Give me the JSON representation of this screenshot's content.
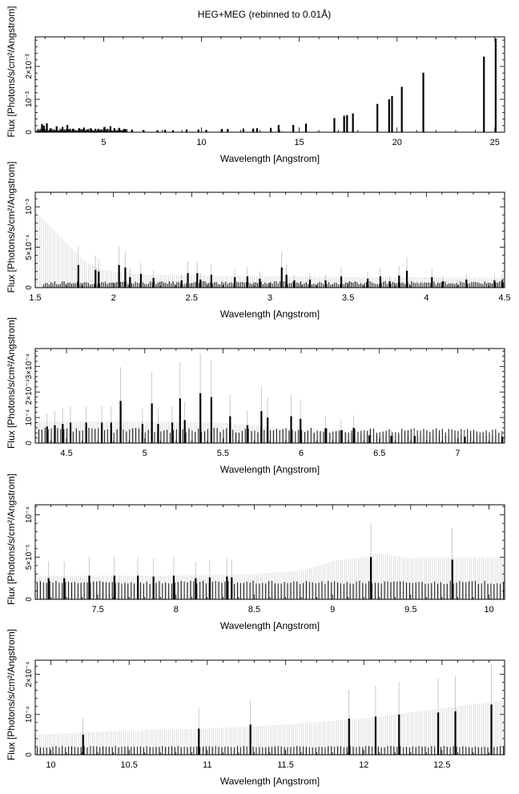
{
  "title": "HEG+MEG (rebinned to 0.01Å)",
  "chart_data": [
    {
      "type": "bar",
      "title": "HEG+MEG (rebinned to 0.01Å)",
      "xlabel": "Wavelength [Angstrom]",
      "ylabel": "Flux [Photons/s/cm²/Angstrom]",
      "xlim": [
        1.5,
        25.5
      ],
      "ylim": [
        0,
        0.0029
      ],
      "xticks": [
        5,
        10,
        15,
        20,
        25
      ],
      "yticks": [
        {
          "v": 0,
          "label": "0"
        },
        {
          "v": 0.001,
          "label": "10⁻³"
        },
        {
          "v": 0.002,
          "label": "2×10⁻³"
        }
      ],
      "grid": false,
      "bars": [
        [
          1.8,
          0.00025
        ],
        [
          1.9,
          0.0002
        ],
        [
          2.05,
          0.00027
        ],
        [
          2.25,
          0.00012
        ],
        [
          2.55,
          0.00018
        ],
        [
          2.85,
          0.00016
        ],
        [
          3.1,
          0.00022
        ],
        [
          3.4,
          0.0001
        ],
        [
          3.7,
          0.00012
        ],
        [
          3.95,
          0.00014
        ],
        [
          4.3,
          0.00012
        ],
        [
          4.7,
          0.0001
        ],
        [
          5.0,
          0.00016
        ],
        [
          5.3,
          0.00018
        ],
        [
          5.5,
          0.00012
        ],
        [
          5.75,
          0.00013
        ],
        [
          6.05,
          0.0001
        ],
        [
          6.4,
          8e-05
        ],
        [
          7.0,
          6e-05
        ],
        [
          7.7,
          6e-05
        ],
        [
          8.1,
          7e-05
        ],
        [
          8.5,
          6e-05
        ],
        [
          9.2,
          8e-05
        ],
        [
          9.8,
          8e-05
        ],
        [
          10.2,
          7e-05
        ],
        [
          11.0,
          0.0001
        ],
        [
          11.3,
          0.0001
        ],
        [
          12.1,
          0.00011
        ],
        [
          12.6,
          0.00011
        ],
        [
          12.8,
          0.00012
        ],
        [
          13.5,
          0.00013
        ],
        [
          13.9,
          0.00022
        ],
        [
          14.65,
          0.00022
        ],
        [
          15.3,
          0.00026
        ],
        [
          16.75,
          0.00043
        ],
        [
          17.25,
          0.0005
        ],
        [
          17.4,
          0.00052
        ],
        [
          17.7,
          0.00057
        ],
        [
          18.95,
          0.00086
        ],
        [
          19.55,
          0.001
        ],
        [
          19.7,
          0.0011
        ],
        [
          20.2,
          0.00138
        ],
        [
          21.3,
          0.00181
        ],
        [
          24.4,
          0.0023
        ],
        [
          25.0,
          0.00285
        ]
      ],
      "dense": {
        "from": 1.55,
        "to": 6.2,
        "level": 7e-05,
        "spread": 8e-05,
        "step": 0.03
      }
    },
    {
      "type": "bar",
      "xlabel": "Wavelength [Angstrom]",
      "ylabel": "Flux [Photons/s/cm²/Angstrom]",
      "xlim": [
        1.5,
        4.5
      ],
      "ylim": [
        0,
        0.00118
      ],
      "xticks": [
        1.5,
        2,
        2.5,
        3,
        3.5,
        4,
        4.5
      ],
      "yticks": [
        {
          "v": 0,
          "label": "0"
        },
        {
          "v": 0.0005,
          "label": "5×10⁻⁴"
        },
        {
          "v": 0.001,
          "label": "10⁻³"
        }
      ],
      "grid": false,
      "errors": [
        [
          1.5,
          0.00095
        ],
        [
          1.6,
          0.00075
        ],
        [
          1.7,
          0.00055
        ],
        [
          1.8,
          0.00035
        ],
        [
          1.9,
          0.00024
        ],
        [
          2.0,
          0.0002
        ],
        [
          2.2,
          0.00016
        ],
        [
          2.5,
          0.00015
        ],
        [
          3.0,
          0.00014
        ],
        [
          3.5,
          0.00013
        ],
        [
          4.0,
          0.00013
        ],
        [
          4.5,
          0.00012
        ]
      ],
      "bars": [
        [
          1.77,
          0.00028
        ],
        [
          1.88,
          0.00022
        ],
        [
          1.9,
          0.0002
        ],
        [
          2.03,
          0.00028
        ],
        [
          2.07,
          0.00025
        ],
        [
          2.1,
          0.00013
        ],
        [
          2.17,
          0.00017
        ],
        [
          2.25,
          0.00012
        ],
        [
          2.43,
          9e-05
        ],
        [
          2.47,
          0.00018
        ],
        [
          2.53,
          0.00018
        ],
        [
          2.55,
          0.0001
        ],
        [
          2.62,
          0.00016
        ],
        [
          2.77,
          0.00013
        ],
        [
          2.85,
          0.00014
        ],
        [
          2.93,
          0.00011
        ],
        [
          3.07,
          0.00025
        ],
        [
          3.1,
          0.00016
        ],
        [
          3.15,
          9e-05
        ],
        [
          3.25,
          0.0001
        ],
        [
          3.35,
          9e-05
        ],
        [
          3.45,
          0.00014
        ],
        [
          3.62,
          0.00011
        ],
        [
          3.7,
          0.00014
        ],
        [
          3.76,
          8e-05
        ],
        [
          3.82,
          0.00015
        ],
        [
          3.87,
          0.00021
        ],
        [
          4.03,
          0.00013
        ],
        [
          4.1,
          8e-05
        ],
        [
          4.25,
          0.0001
        ],
        [
          4.43,
          9e-05
        ],
        [
          4.48,
          9e-05
        ]
      ],
      "dense": {
        "from": 1.55,
        "to": 4.49,
        "level": 6e-05,
        "spread": 4e-05,
        "step": 0.012
      }
    },
    {
      "type": "bar",
      "xlabel": "Wavelength [Angstrom]",
      "ylabel": "Flux [Photons/s/cm²/Angstrom]",
      "xlim": [
        4.3,
        7.3
      ],
      "ylim": [
        0,
        0.00037
      ],
      "xticks": [
        4.5,
        5,
        5.5,
        6,
        6.5,
        7
      ],
      "yticks": [
        {
          "v": 0,
          "label": "0"
        },
        {
          "v": 0.0001,
          "label": "10⁻⁴"
        },
        {
          "v": 0.0002,
          "label": "2×10⁻⁴"
        },
        {
          "v": 0.0003,
          "label": "3×10⁻⁴"
        }
      ],
      "grid": false,
      "errors": [
        [
          4.3,
          8.5e-05
        ],
        [
          5.0,
          8.5e-05
        ],
        [
          5.5,
          8e-05
        ],
        [
          6.0,
          5e-05
        ],
        [
          6.5,
          3e-05
        ],
        [
          7.3,
          2.8e-05
        ]
      ],
      "bars": [
        [
          4.37,
          6.5e-05
        ],
        [
          4.42,
          7e-05
        ],
        [
          4.47,
          7.5e-05
        ],
        [
          4.52,
          8e-05
        ],
        [
          4.62,
          8e-05
        ],
        [
          4.72,
          8e-05
        ],
        [
          4.78,
          8e-05
        ],
        [
          4.84,
          0.000165
        ],
        [
          4.98,
          7.5e-05
        ],
        [
          5.04,
          0.000155
        ],
        [
          5.08,
          7.5e-05
        ],
        [
          5.17,
          8e-05
        ],
        [
          5.22,
          0.000175
        ],
        [
          5.25,
          9e-05
        ],
        [
          5.35,
          0.000195
        ],
        [
          5.42,
          0.00018
        ],
        [
          5.54,
          0.000105
        ],
        [
          5.65,
          7e-05
        ],
        [
          5.74,
          0.000125
        ],
        [
          5.78,
          0.0001
        ],
        [
          5.93,
          0.000105
        ],
        [
          5.99,
          9.5e-05
        ],
        [
          6.15,
          5.8e-05
        ],
        [
          6.25,
          5e-05
        ],
        [
          6.33,
          6e-05
        ],
        [
          6.43,
          3e-05
        ],
        [
          6.57,
          2.8e-05
        ],
        [
          6.72,
          2.8e-05
        ],
        [
          7.04,
          2.5e-05
        ],
        [
          7.28,
          2.5e-05
        ]
      ],
      "dense": {
        "from": 4.32,
        "to": 7.28,
        "level": 5e-05,
        "spread": 2e-05,
        "step": 0.02
      }
    },
    {
      "type": "bar",
      "xlabel": "Wavelength [Angstrom]",
      "ylabel": "Flux [Photons/s/cm²/Angstrom]",
      "xlim": [
        7.1,
        10.1
      ],
      "ylim": [
        0,
        0.000112
      ],
      "xticks": [
        7.5,
        8,
        8.5,
        9,
        9.5,
        10
      ],
      "yticks": [
        {
          "v": 0,
          "label": "0"
        },
        {
          "v": 5e-05,
          "label": "5×10⁻⁵"
        },
        {
          "v": 0.0001,
          "label": "10⁻⁴"
        }
      ],
      "grid": false,
      "errors": [
        [
          7.1,
          2.8e-05
        ],
        [
          8.0,
          2.8e-05
        ],
        [
          8.5,
          3e-05
        ],
        [
          8.8,
          3.4e-05
        ],
        [
          9.0,
          4.5e-05
        ],
        [
          9.2,
          5e-05
        ],
        [
          9.3,
          5.4e-05
        ],
        [
          9.5,
          4.9e-05
        ],
        [
          10.1,
          5e-05
        ]
      ],
      "bars": [
        [
          7.18,
          2.5e-05
        ],
        [
          7.28,
          2.5e-05
        ],
        [
          7.44,
          2.8e-05
        ],
        [
          7.6,
          2.8e-05
        ],
        [
          7.75,
          2.8e-05
        ],
        [
          7.85,
          2.7e-05
        ],
        [
          7.98,
          2.8e-05
        ],
        [
          8.12,
          2.5e-05
        ],
        [
          8.21,
          2.6e-05
        ],
        [
          8.32,
          2.7e-05
        ],
        [
          8.35,
          2.6e-05
        ],
        [
          9.24,
          5e-05
        ],
        [
          9.76,
          4.7e-05
        ]
      ],
      "dense": {
        "from": 7.11,
        "to": 10.09,
        "level": 2e-05,
        "spread": 4e-06,
        "step": 0.02
      }
    },
    {
      "type": "bar",
      "xlabel": "Wavelength [Angstrom]",
      "ylabel": "Flux [Photons/s/cm²/Angstrom]",
      "xlim": [
        9.9,
        12.9
      ],
      "ylim": [
        0,
        0.000235
      ],
      "xticks": [
        10,
        10.5,
        11,
        11.5,
        12,
        12.5
      ],
      "yticks": [
        {
          "v": 0,
          "label": "0"
        },
        {
          "v": 0.0001,
          "label": "10⁻⁴"
        },
        {
          "v": 0.0002,
          "label": "2×10⁻⁴"
        }
      ],
      "grid": false,
      "errors": [
        [
          9.9,
          5e-05
        ],
        [
          10.5,
          6e-05
        ],
        [
          11.0,
          6.5e-05
        ],
        [
          11.5,
          7.5e-05
        ],
        [
          12.0,
          9e-05
        ],
        [
          12.5,
          0.000115
        ],
        [
          12.9,
          0.000135
        ]
      ],
      "bars": [
        [
          10.2,
          5e-05
        ],
        [
          10.94,
          6.5e-05
        ],
        [
          11.27,
          7.5e-05
        ],
        [
          11.9,
          9e-05
        ],
        [
          12.07,
          9.5e-05
        ],
        [
          12.22,
          0.0001
        ],
        [
          12.47,
          0.000105
        ],
        [
          12.58,
          0.000108
        ],
        [
          12.81,
          0.000125
        ]
      ],
      "dense": {
        "from": 9.91,
        "to": 12.89,
        "level": 2e-05,
        "spread": 4e-06,
        "step": 0.02
      }
    }
  ]
}
